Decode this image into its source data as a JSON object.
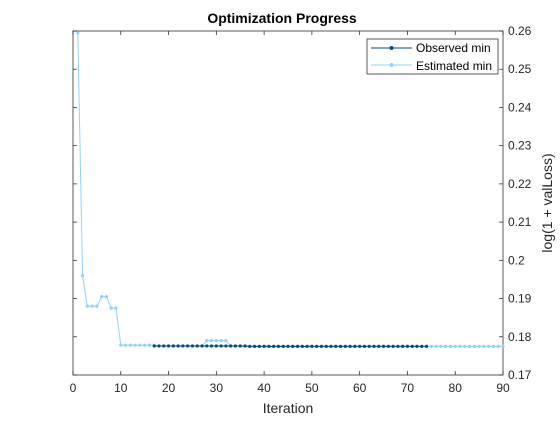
{
  "chart_data": {
    "type": "line",
    "title": "Optimization Progress",
    "xlabel": "Iteration",
    "ylabel": "log(1 + valLoss)",
    "xlim": [
      0,
      90
    ],
    "ylim": [
      0.17,
      0.26
    ],
    "x_ticks": [
      0,
      10,
      20,
      30,
      40,
      50,
      60,
      70,
      80,
      90
    ],
    "y_ticks": [
      0.17,
      0.18,
      0.19,
      0.2,
      0.21,
      0.22,
      0.23,
      0.24,
      0.25,
      0.26
    ],
    "x_tick_labels": [
      "0",
      "10",
      "20",
      "30",
      "40",
      "50",
      "60",
      "70",
      "80",
      "90"
    ],
    "y_tick_labels": [
      "0.17",
      "0.18",
      "0.19",
      "0.2",
      "0.21",
      "0.22",
      "0.23",
      "0.24",
      "0.25",
      "0.26"
    ],
    "y_axis_side": "right",
    "grid": false,
    "legend_position": "top-right",
    "series": [
      {
        "name": "Observed min",
        "color": "#00517a",
        "x": [
          17,
          18,
          19,
          20,
          21,
          22,
          23,
          24,
          25,
          26,
          27,
          28,
          29,
          30,
          31,
          32,
          33,
          34,
          35,
          36,
          37,
          38,
          39,
          40,
          41,
          42,
          43,
          44,
          45,
          46,
          47,
          48,
          49,
          50,
          51,
          52,
          53,
          54,
          55,
          56,
          57,
          58,
          59,
          60,
          61,
          62,
          63,
          64,
          65,
          66,
          67,
          68,
          69,
          70,
          71,
          72,
          73,
          74
        ],
        "y": [
          0.1776,
          0.1776,
          0.1776,
          0.1776,
          0.1776,
          0.1776,
          0.1776,
          0.1776,
          0.1776,
          0.1776,
          0.1776,
          0.1776,
          0.1776,
          0.1776,
          0.1776,
          0.1776,
          0.1776,
          0.1776,
          0.1776,
          0.1776,
          0.1775,
          0.1775,
          0.1775,
          0.1775,
          0.1775,
          0.1775,
          0.1775,
          0.1775,
          0.1775,
          0.1775,
          0.1775,
          0.1775,
          0.1775,
          0.1775,
          0.1775,
          0.1775,
          0.1775,
          0.1775,
          0.1775,
          0.1775,
          0.1775,
          0.1775,
          0.1775,
          0.1775,
          0.1775,
          0.1775,
          0.1775,
          0.1775,
          0.1775,
          0.1775,
          0.1775,
          0.1775,
          0.1775,
          0.1775,
          0.1775,
          0.1775,
          0.1775,
          0.1775
        ]
      },
      {
        "name": "Estimated min",
        "color": "#8fd3f5",
        "x": [
          1,
          2,
          3,
          4,
          5,
          6,
          7,
          8,
          9,
          10,
          11,
          12,
          13,
          14,
          15,
          16,
          17,
          18,
          19,
          20,
          21,
          22,
          23,
          24,
          25,
          26,
          27,
          28,
          29,
          30,
          31,
          32,
          33,
          34,
          35,
          36,
          37,
          38,
          39,
          40,
          41,
          42,
          43,
          44,
          45,
          46,
          47,
          48,
          49,
          50,
          51,
          52,
          53,
          54,
          55,
          56,
          57,
          58,
          59,
          60,
          61,
          62,
          63,
          64,
          65,
          66,
          67,
          68,
          69,
          70,
          71,
          72,
          73,
          74,
          75,
          76,
          77,
          78,
          79,
          80,
          81,
          82,
          83,
          84,
          85,
          86,
          87,
          88,
          89,
          90
        ],
        "y": [
          0.2595,
          0.196,
          0.188,
          0.188,
          0.188,
          0.1905,
          0.1905,
          0.1875,
          0.1875,
          0.1778,
          0.1778,
          0.1778,
          0.1778,
          0.1778,
          0.1778,
          0.1778,
          0.1778,
          0.1776,
          0.1776,
          0.1776,
          0.1776,
          0.1776,
          0.1776,
          0.1776,
          0.1776,
          0.1776,
          0.1776,
          0.179,
          0.179,
          0.179,
          0.179,
          0.179,
          0.1776,
          0.1776,
          0.1776,
          0.1776,
          0.1775,
          0.1775,
          0.1775,
          0.1775,
          0.1775,
          0.1775,
          0.1775,
          0.1775,
          0.1775,
          0.1775,
          0.1775,
          0.1775,
          0.1775,
          0.1775,
          0.1775,
          0.1775,
          0.1775,
          0.1775,
          0.1775,
          0.1775,
          0.1775,
          0.1775,
          0.1775,
          0.1775,
          0.1775,
          0.1775,
          0.1775,
          0.1775,
          0.1775,
          0.1775,
          0.1775,
          0.1775,
          0.1775,
          0.1775,
          0.1775,
          0.1775,
          0.1775,
          0.1775,
          0.1775,
          0.1775,
          0.1775,
          0.1775,
          0.1775,
          0.1775,
          0.1775,
          0.1775,
          0.1775,
          0.1775,
          0.1775,
          0.1775,
          0.1775,
          0.1775,
          0.1775,
          0.1775
        ]
      }
    ]
  }
}
